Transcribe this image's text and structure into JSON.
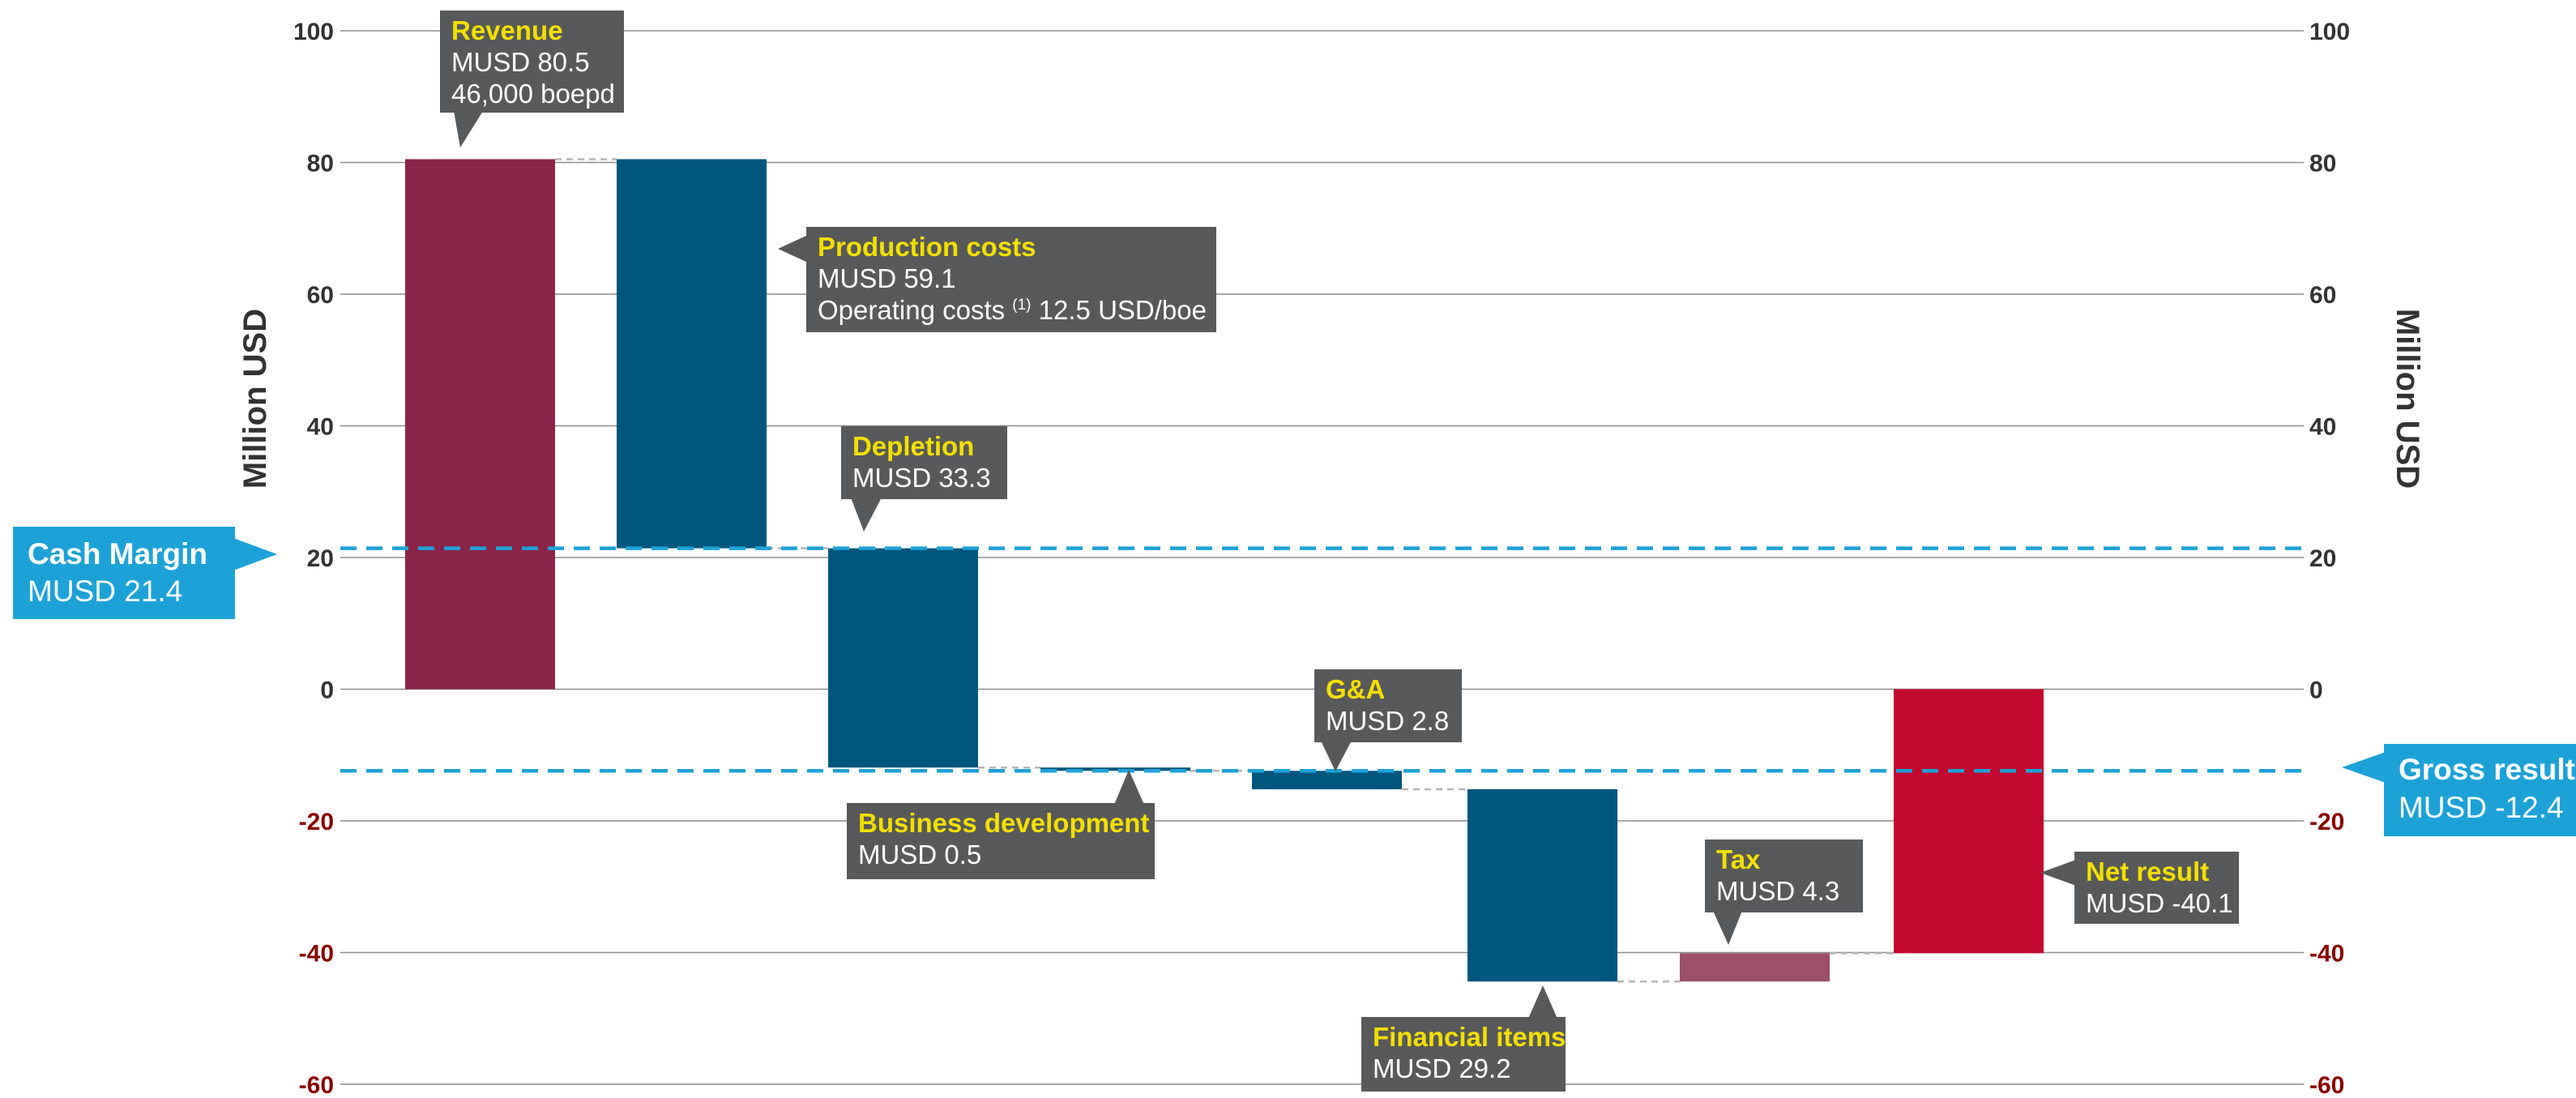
{
  "chart_data": {
    "type": "bar",
    "subtype": "waterfall",
    "ylabel": "Million USD",
    "ylim": [
      -60,
      100
    ],
    "yticks": [
      100,
      80,
      60,
      40,
      20,
      0,
      -20,
      -40,
      -60
    ],
    "grid": true,
    "colors": {
      "revenue": "#8a2549",
      "cost": "#01567d",
      "tax": "#9b5068",
      "net": "#c3082f",
      "reference": "#1da2d8",
      "annotation_box": "#58595b",
      "annotation_title": "#f2e000",
      "negative_tick": "#8b0000",
      "positive_tick": "#333333"
    },
    "steps": [
      {
        "name": "Revenue",
        "start": 0,
        "end": 80.5,
        "color_key": "revenue"
      },
      {
        "name": "Production costs",
        "start": 80.5,
        "end": 21.4,
        "color_key": "cost"
      },
      {
        "name": "Depletion",
        "start": 21.4,
        "end": -11.9,
        "color_key": "cost"
      },
      {
        "name": "Business development",
        "start": -11.9,
        "end": -12.4,
        "color_key": "cost"
      },
      {
        "name": "G&A",
        "start": -12.4,
        "end": -15.2,
        "color_key": "cost"
      },
      {
        "name": "Financial items",
        "start": -15.2,
        "end": -44.4,
        "color_key": "cost"
      },
      {
        "name": "Tax",
        "start": -44.4,
        "end": -40.1,
        "color_key": "tax"
      },
      {
        "name": "Net result",
        "start": 0,
        "end": -40.1,
        "color_key": "net"
      }
    ],
    "annotations": [
      {
        "title": "Revenue",
        "lines": [
          "MUSD 80.5",
          "46,000 boepd"
        ]
      },
      {
        "title": "Production costs",
        "lines": [
          "MUSD 59.1"
        ],
        "footnote_line": {
          "before": "Operating costs ",
          "sup": "(1)",
          "after": " 12.5 USD/boe"
        }
      },
      {
        "title": "Depletion",
        "lines": [
          "MUSD 33.3"
        ]
      },
      {
        "title": "Business development",
        "lines": [
          "MUSD 0.5"
        ]
      },
      {
        "title": "G&A",
        "lines": [
          "MUSD 2.8"
        ]
      },
      {
        "title": "Financial items",
        "lines": [
          "MUSD 29.2"
        ]
      },
      {
        "title": "Tax",
        "lines": [
          "MUSD 4.3"
        ]
      },
      {
        "title": "Net result",
        "lines": [
          "MUSD -40.1"
        ]
      }
    ],
    "reference_lines": [
      {
        "name": "Cash Margin",
        "label": "MUSD 21.4",
        "value": 21.4
      },
      {
        "name": "Gross result",
        "label": "MUSD -12.4",
        "value": -12.4
      }
    ]
  }
}
